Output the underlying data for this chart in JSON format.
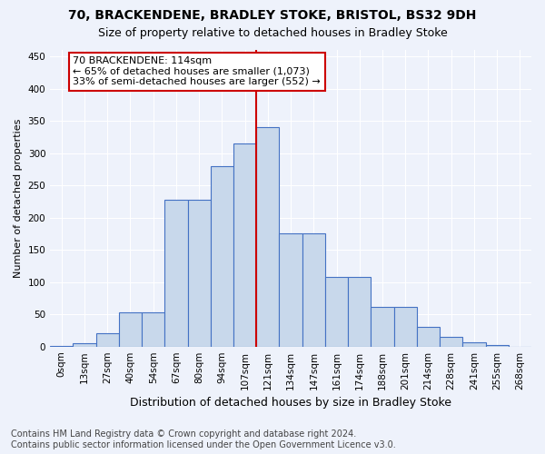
{
  "title": "70, BRACKENDENE, BRADLEY STOKE, BRISTOL, BS32 9DH",
  "subtitle": "Size of property relative to detached houses in Bradley Stoke",
  "xlabel": "Distribution of detached houses by size in Bradley Stoke",
  "ylabel": "Number of detached properties",
  "footer_line1": "Contains HM Land Registry data © Crown copyright and database right 2024.",
  "footer_line2": "Contains public sector information licensed under the Open Government Licence v3.0.",
  "bin_labels": [
    "0sqm",
    "13sqm",
    "27sqm",
    "40sqm",
    "54sqm",
    "67sqm",
    "80sqm",
    "94sqm",
    "107sqm",
    "121sqm",
    "134sqm",
    "147sqm",
    "161sqm",
    "174sqm",
    "188sqm",
    "201sqm",
    "214sqm",
    "228sqm",
    "241sqm",
    "255sqm",
    "268sqm"
  ],
  "bar_heights": [
    1,
    5,
    20,
    53,
    53,
    228,
    228,
    280,
    315,
    340,
    175,
    175,
    108,
    108,
    62,
    62,
    30,
    15,
    7,
    2,
    0
  ],
  "bar_color": "#c8d8eb",
  "bar_edge_color": "#4472c4",
  "vline_index": 8.5,
  "vline_color": "#cc0000",
  "annotation_text": "70 BRACKENDENE: 114sqm\n← 65% of detached houses are smaller (1,073)\n33% of semi-detached houses are larger (552) →",
  "annotation_box_color": "#ffffff",
  "annotation_box_edge": "#cc0000",
  "ylim": [
    0,
    460
  ],
  "yticks": [
    0,
    50,
    100,
    150,
    200,
    250,
    300,
    350,
    400,
    450
  ],
  "background_color": "#eef2fb",
  "title_fontsize": 10,
  "subtitle_fontsize": 9,
  "xlabel_fontsize": 9,
  "ylabel_fontsize": 8,
  "tick_fontsize": 7.5,
  "footer_fontsize": 7,
  "annotation_fontsize": 8
}
